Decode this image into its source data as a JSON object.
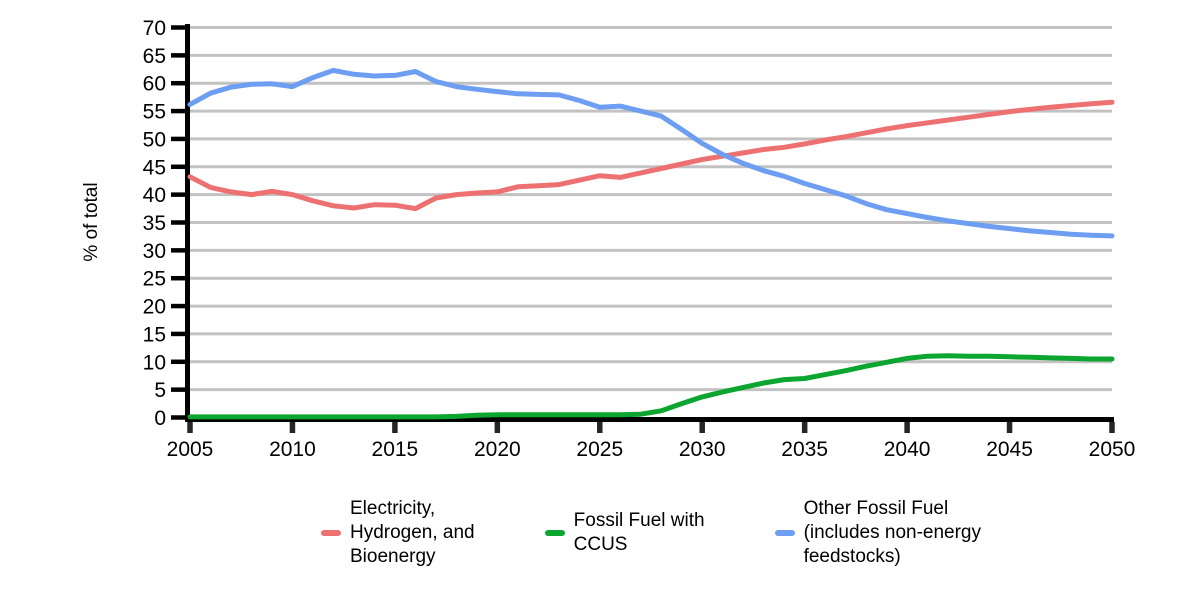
{
  "chart_data": {
    "type": "line",
    "title": "",
    "xlabel": "",
    "ylabel": "% of total",
    "x_range": [
      2005,
      2050
    ],
    "y_range": [
      0,
      70
    ],
    "grid": "horizontal",
    "gridline_color": "#c2c2c2",
    "axis_color": "#000000",
    "legend_position": "bottom",
    "xticks": [
      2005,
      2010,
      2015,
      2020,
      2025,
      2030,
      2035,
      2040,
      2045,
      2050
    ],
    "yticks": [
      0,
      5,
      10,
      15,
      20,
      25,
      30,
      35,
      40,
      45,
      50,
      55,
      60,
      65,
      70
    ],
    "x": [
      2005,
      2006,
      2007,
      2008,
      2009,
      2010,
      2011,
      2012,
      2013,
      2014,
      2015,
      2016,
      2017,
      2018,
      2019,
      2020,
      2021,
      2022,
      2023,
      2024,
      2025,
      2026,
      2027,
      2028,
      2029,
      2030,
      2031,
      2032,
      2033,
      2034,
      2035,
      2036,
      2037,
      2038,
      2039,
      2040,
      2041,
      2042,
      2043,
      2044,
      2045,
      2046,
      2047,
      2048,
      2049,
      2050
    ],
    "series": [
      {
        "name": "Electricity, Hydrogen, and Bioenergy",
        "legend_label": "Electricity,\nHydrogen, and\nBioenergy",
        "color": "#ee7172",
        "values": [
          43.2,
          41.3,
          40.5,
          40.0,
          40.6,
          40.0,
          38.9,
          38.0,
          37.6,
          38.2,
          38.1,
          37.5,
          39.4,
          40.0,
          40.3,
          40.5,
          41.4,
          41.6,
          41.8,
          42.6,
          43.4,
          43.1,
          43.9,
          44.7,
          45.5,
          46.3,
          46.9,
          47.5,
          48.1,
          48.5,
          49.1,
          49.8,
          50.4,
          51.1,
          51.8,
          52.4,
          52.9,
          53.4,
          53.9,
          54.4,
          54.9,
          55.3,
          55.7,
          56.0,
          56.3,
          56.6
        ]
      },
      {
        "name": "Fossil Fuel with CCUS",
        "legend_label": "Fossil Fuel with\nCCUS",
        "color": "#0ca52f",
        "values": [
          0.1,
          0.1,
          0.1,
          0.1,
          0.1,
          0.1,
          0.1,
          0.1,
          0.1,
          0.1,
          0.1,
          0.1,
          0.1,
          0.2,
          0.4,
          0.5,
          0.5,
          0.5,
          0.5,
          0.5,
          0.5,
          0.5,
          0.6,
          1.2,
          2.5,
          3.7,
          4.6,
          5.4,
          6.2,
          6.8,
          7.0,
          7.7,
          8.4,
          9.2,
          9.9,
          10.6,
          11.0,
          11.1,
          11.0,
          11.0,
          10.9,
          10.8,
          10.7,
          10.6,
          10.5,
          10.5
        ]
      },
      {
        "name": "Other Fossil Fuel (includes non-energy feedstocks)",
        "legend_label": "Other Fossil Fuel\n(includes non-energy\nfeedstocks)",
        "color": "#6d9ef1",
        "values": [
          56.2,
          58.2,
          59.3,
          59.8,
          59.9,
          59.4,
          61.0,
          62.3,
          61.6,
          61.3,
          61.4,
          62.1,
          60.3,
          59.4,
          58.9,
          58.5,
          58.1,
          58.0,
          57.9,
          56.9,
          55.7,
          55.9,
          55.0,
          54.1,
          51.7,
          49.2,
          47.2,
          45.6,
          44.3,
          43.3,
          42.0,
          40.9,
          39.8,
          38.4,
          37.3,
          36.6,
          35.9,
          35.3,
          34.8,
          34.3,
          33.9,
          33.5,
          33.2,
          32.9,
          32.7,
          32.6
        ]
      }
    ]
  }
}
